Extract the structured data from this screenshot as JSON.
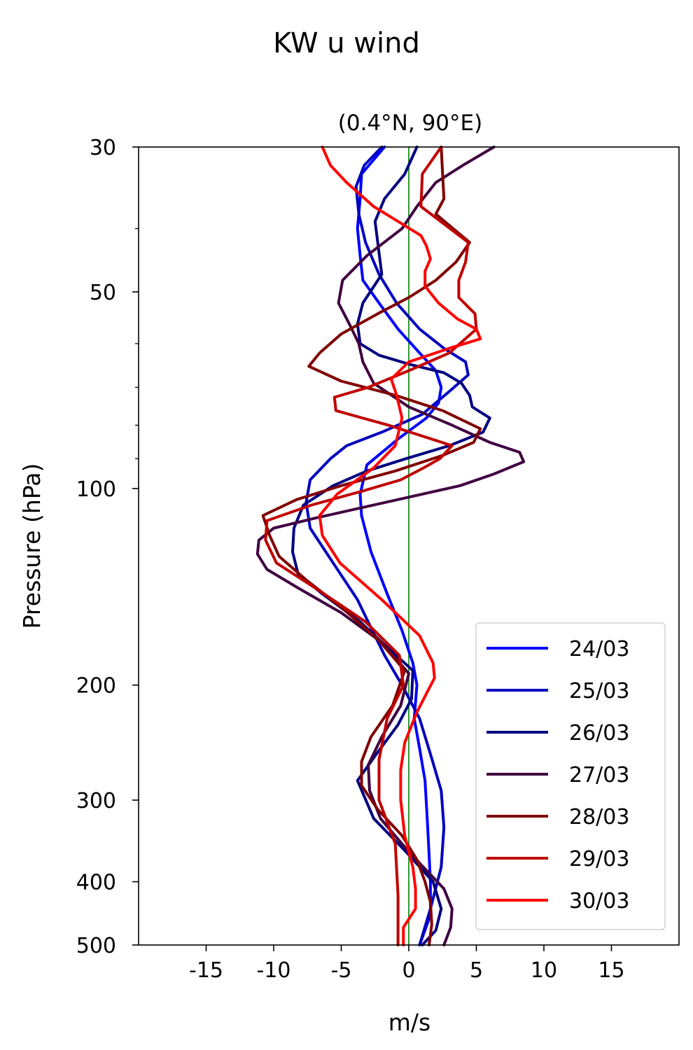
{
  "chart_data": {
    "type": "line",
    "title": "KW u wind",
    "subtitle": "(0.4°N, 90°E)",
    "xlabel": "m/s",
    "ylabel": "Pressure (hPa)",
    "xlim": [
      -20,
      20
    ],
    "ylim": [
      500,
      30
    ],
    "y_scale": "log",
    "x_ticks": [
      -15,
      -10,
      -5,
      0,
      5,
      10,
      15
    ],
    "x_tick_labels": [
      "-15",
      "-10",
      "-5",
      "0",
      "5",
      "10",
      "15"
    ],
    "y_ticks": [
      30,
      50,
      100,
      200,
      300,
      400,
      500
    ],
    "y_tick_labels": [
      "30",
      "50",
      "100",
      "200",
      "300",
      "400",
      "500"
    ],
    "y_minor_ticks": [
      40,
      60,
      70,
      80,
      90
    ],
    "grid": false,
    "legend_position": "lower-right",
    "reference_line": {
      "x": 0,
      "color": "#008000"
    },
    "series": [
      {
        "name": "24/03",
        "color": "#0000ff",
        "x": [
          -1.8,
          -3.5,
          -3.6,
          -3.8,
          -3.6,
          -3.4,
          -2.2,
          -0.8,
          0.8,
          2.0,
          2.4,
          2.2,
          1.3,
          -0.8,
          -3.1,
          -3.6,
          -3.5,
          -2.8,
          -1.6,
          -0.5,
          0.3,
          0.6,
          0.4,
          0.8,
          1.2,
          1.4,
          1.6,
          1.6,
          0.8
        ],
        "y": [
          30,
          33,
          36,
          40,
          44,
          48,
          52,
          57,
          62,
          66,
          70,
          74,
          78,
          84,
          92,
          102,
          110,
          125,
          145,
          165,
          185,
          200,
          225,
          250,
          280,
          330,
          400,
          450,
          500
        ]
      },
      {
        "name": "25/03",
        "color": "#0000c0",
        "x": [
          -2.0,
          -3.3,
          -3.9,
          -3.7,
          -3.2,
          -2.2,
          -0.9,
          0.8,
          2.6,
          4.2,
          4.4,
          3.0,
          1.0,
          -2.0,
          -4.6,
          -5.8,
          -7.3,
          -7.6,
          -7.3,
          -5.6,
          -3.8,
          -2.7,
          -1.8,
          -0.5,
          0.8,
          1.6,
          2.4,
          2.6,
          2.4,
          1.6,
          0.8
        ],
        "y": [
          30,
          32,
          34.5,
          38,
          42,
          47,
          52,
          57,
          61,
          64,
          67,
          71,
          77,
          82,
          86,
          90,
          97,
          105,
          115,
          130,
          148,
          165,
          180,
          200,
          225,
          255,
          290,
          330,
          380,
          440,
          500
        ]
      },
      {
        "name": "26/03",
        "color": "#000080",
        "x": [
          0.6,
          -0.3,
          -1.8,
          -2.5,
          -2.3,
          -2.0,
          -3.4,
          -3.8,
          -3.6,
          -2.2,
          0.0,
          2.6,
          3.9,
          4.5,
          4.7,
          6.0,
          5.5,
          3.0,
          -0.2,
          -3.1,
          -5.6,
          -7.8,
          -8.5,
          -8.6,
          -8.2,
          -6.4,
          -3.6,
          -1.6,
          0.3,
          0.2,
          -0.8,
          -2.4,
          -3.8,
          -2.6,
          -0.2,
          1.8,
          2.4,
          2.0,
          1.0
        ],
        "y": [
          30,
          33,
          36,
          39,
          42,
          47,
          52,
          56,
          60,
          62.5,
          64.5,
          66.5,
          69,
          72,
          75,
          78,
          82,
          86,
          90,
          94,
          99,
          106,
          115,
          125,
          135,
          145,
          160,
          175,
          190,
          210,
          230,
          255,
          280,
          320,
          360,
          400,
          440,
          475,
          500
        ]
      },
      {
        "name": "27/03",
        "color": "#400040",
        "x": [
          6.3,
          4.0,
          2.0,
          0.6,
          -0.5,
          -3.1,
          -4.9,
          -5.2,
          -4.4,
          -3.7,
          -3.4,
          -2.6,
          0.0,
          3.2,
          6.0,
          8.2,
          8.5,
          6.3,
          3.8,
          0.1,
          -3.5,
          -6.9,
          -10.0,
          -11.1,
          -11.2,
          -10.5,
          -8.2,
          -5.0,
          -2.0,
          0.0,
          -0.6,
          -2.0,
          -3.0,
          -2.9,
          -2.1,
          0.0,
          2.6,
          3.2,
          3.1,
          2.6
        ],
        "y": [
          30,
          32,
          34,
          37,
          40,
          44,
          48,
          52,
          56,
          60,
          64,
          69,
          75,
          80,
          85,
          88,
          91,
          95,
          99,
          103,
          107,
          111,
          115,
          120,
          126,
          133,
          142,
          155,
          172,
          192,
          215,
          240,
          265,
          290,
          320,
          360,
          410,
          440,
          470,
          500
        ]
      },
      {
        "name": "28/03",
        "color": "#800000",
        "x": [
          2.4,
          2.5,
          2.6,
          2.0,
          4.5,
          3.5,
          2.0,
          0.0,
          -2.3,
          -5.0,
          -6.6,
          -7.4,
          -5.0,
          -1.0,
          2.5,
          5.3,
          4.8,
          2.5,
          -1.0,
          -5.0,
          -8.3,
          -10.8,
          -10.3,
          -9.6,
          -7.6,
          -5.0,
          -2.3,
          -0.3,
          -1.2,
          -2.8,
          -3.5,
          -3.5,
          -2.3,
          -0.5,
          0.6,
          1.2,
          1.6,
          1.7,
          1.5
        ],
        "y": [
          30,
          33,
          36,
          38,
          42,
          45,
          48,
          51,
          54,
          58,
          62,
          65,
          68.5,
          72,
          76,
          81,
          85,
          89,
          94,
          99,
          104,
          110,
          118,
          127,
          138,
          152,
          170,
          190,
          215,
          240,
          262,
          285,
          310,
          340,
          370,
          400,
          430,
          465,
          500
        ]
      },
      {
        "name": "29/03",
        "color": "#c00000",
        "x": [
          2.4,
          1.0,
          0.9,
          4.4,
          4.2,
          3.7,
          3.7,
          4.9,
          5.0,
          3.0,
          0.0,
          -3.0,
          -5.5,
          -5.4,
          -1.5,
          3.2,
          2.3,
          1.1,
          -0.6,
          -3.5,
          -7.2,
          -10.5,
          -10.6,
          -9.8,
          -6.7,
          -3.2,
          -0.7,
          -0.4,
          -1.6,
          -2.2,
          -2.2,
          -1.0,
          -0.8,
          -0.8
        ],
        "y": [
          30,
          33,
          37,
          42,
          45,
          48,
          51,
          54,
          57,
          62,
          66,
          70,
          72.5,
          76,
          80,
          86,
          90,
          93,
          97,
          101,
          106,
          112,
          120,
          130,
          143,
          160,
          180,
          200,
          225,
          260,
          300,
          350,
          420,
          500
        ]
      },
      {
        "name": "30/03",
        "color": "#ff0000",
        "x": [
          -6.4,
          -5.8,
          -4.6,
          -2.6,
          -0.8,
          0.9,
          1.3,
          1.6,
          1.2,
          1.2,
          2.2,
          3.6,
          5.0,
          5.3,
          3.0,
          0.0,
          -1.3,
          -0.9,
          -0.5,
          -1.0,
          -2.6,
          -5.3,
          -6.6,
          -6.4,
          -5.1,
          -2.0,
          0.8,
          1.8,
          1.9,
          0.6,
          -0.3,
          -0.6,
          -0.6,
          -0.3,
          0.3,
          0.5,
          0.5,
          -0.4,
          -0.4
        ],
        "y": [
          30,
          32,
          34,
          37,
          39,
          41,
          42.5,
          44.5,
          46.5,
          49,
          52,
          55,
          57,
          59,
          61,
          64,
          68,
          72,
          78,
          86,
          93,
          102,
          110,
          118,
          130,
          148,
          168,
          185,
          195,
          220,
          245,
          270,
          300,
          340,
          380,
          410,
          440,
          470,
          500
        ]
      }
    ]
  }
}
